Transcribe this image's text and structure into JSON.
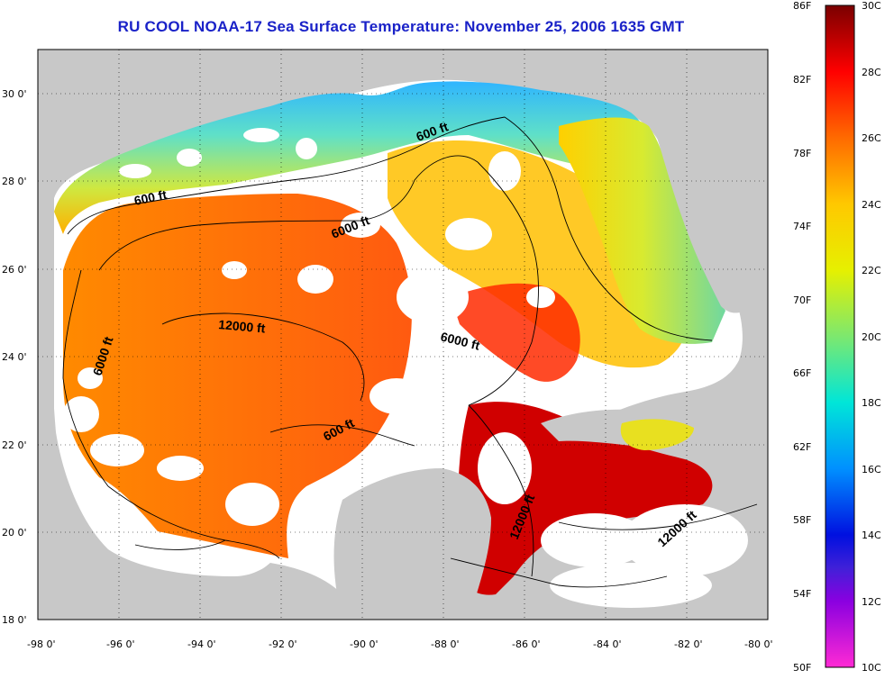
{
  "title": "RU COOL  NOAA-17  Sea Surface Temperature:  November 25, 2006 1635 GMT",
  "map": {
    "lon_range": [
      -98,
      -80
    ],
    "lat_range": [
      18,
      31
    ],
    "lon_ticks": [
      "-98 0'",
      "-96 0'",
      "-94 0'",
      "-92 0'",
      "-90 0'",
      "-88 0'",
      "-86 0'",
      "-84 0'",
      "-82 0'",
      "-80 0'"
    ],
    "lat_ticks": [
      "18 0'",
      "20 0'",
      "22 0'",
      "24 0'",
      "26 0'",
      "28 0'",
      "30 0'"
    ],
    "colors": {
      "land": "#c8c8c8",
      "cloud": "#ffffff",
      "title": "#1a22c8"
    },
    "contour_labels": [
      {
        "text": "600 ft"
      },
      {
        "text": "600 ft"
      },
      {
        "text": "6000 ft"
      },
      {
        "text": "12000 ft"
      },
      {
        "text": "6000 ft"
      },
      {
        "text": "6000 ft"
      },
      {
        "text": "600 ft"
      },
      {
        "text": "12000 ft"
      },
      {
        "text": "12000 ft"
      }
    ]
  },
  "colorbar": {
    "fahrenheit_labels": [
      "86F",
      "82F",
      "78F",
      "74F",
      "70F",
      "66F",
      "62F",
      "58F",
      "54F",
      "50F"
    ],
    "celsius_labels": [
      "30C",
      "28C",
      "26C",
      "24C",
      "22C",
      "20C",
      "18C",
      "16C",
      "14C",
      "12C",
      "10C"
    ],
    "colors_top_to_bottom": [
      "#7a0000",
      "#ff0000",
      "#ff6a00",
      "#ffc800",
      "#e6f000",
      "#7de86e",
      "#00e6d8",
      "#0090ff",
      "#0010e0",
      "#8a00e0",
      "#ff2ad4"
    ]
  }
}
